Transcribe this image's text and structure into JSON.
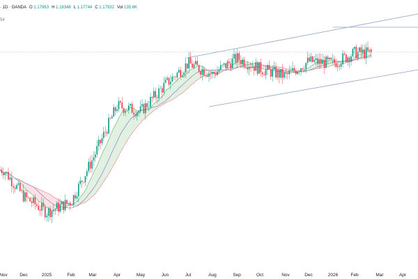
{
  "header": {
    "symbol_tail": "· 1D · OANDA",
    "ohlc": [
      {
        "key": "O",
        "value": "1.17963"
      },
      {
        "key": "H",
        "value": "1.18348"
      },
      {
        "key": "L",
        "value": "1.17744"
      },
      {
        "key": "C",
        "value": "1.17932"
      },
      {
        "key": "Vol",
        "value": "135.6K"
      }
    ],
    "indicator_value": "54"
  },
  "colors": {
    "up": "#089981",
    "down": "#f23645",
    "cloud_bull": "#c8e6c9",
    "cloud_bear": "#f8c8cc",
    "span_a": "#5fae65",
    "span_b": "#ef7a85",
    "baseline": "#8e7cc3",
    "trendline": "#8fa0c4",
    "price_line": "#b0b4bd"
  },
  "chart_data": {
    "type": "candlestick",
    "title": "",
    "xlabel": "",
    "ylabel": "",
    "x_ticks": [
      "Nov",
      "Dec",
      "2025",
      "Feb",
      "Mar",
      "Apr",
      "May",
      "Jun",
      "Jul",
      "Aug",
      "Sep",
      "Oct",
      "Nov",
      "Dec",
      "2026",
      "Feb",
      "Mar",
      "Apr"
    ],
    "last_price_line": "dotted horizontal at last close",
    "indicators": [
      "Ichimoku cloud",
      "moving average",
      "ascending parallel channel",
      "horizontal level at recent high"
    ],
    "grid": false,
    "legend": "none",
    "close_path_approx": [
      {
        "date": "Nov",
        "close": 1.07
      },
      {
        "date": "Dec",
        "close": 1.045
      },
      {
        "date": "2025",
        "close": 1.03
      },
      {
        "date": "Feb",
        "close": 1.04
      },
      {
        "date": "Mar",
        "close": 1.08
      },
      {
        "date": "Apr",
        "close": 1.13
      },
      {
        "date": "May",
        "close": 1.125
      },
      {
        "date": "Jun",
        "close": 1.15
      },
      {
        "date": "Jul",
        "close": 1.17
      },
      {
        "date": "Aug",
        "close": 1.16
      },
      {
        "date": "Sep",
        "close": 1.175
      },
      {
        "date": "Oct",
        "close": 1.165
      },
      {
        "date": "Nov",
        "close": 1.158
      },
      {
        "date": "Dec",
        "close": 1.172
      },
      {
        "date": "2026",
        "close": 1.17
      },
      {
        "date": "Feb",
        "close": 1.18
      }
    ]
  }
}
